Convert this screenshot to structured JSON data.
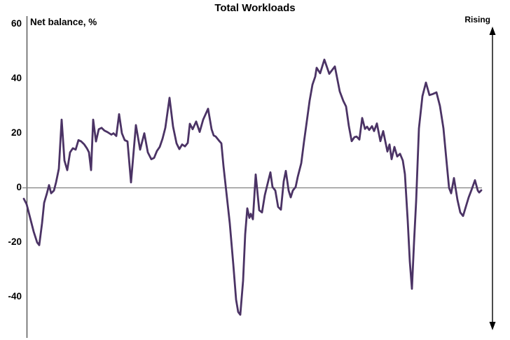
{
  "chart_data": {
    "type": "line",
    "title": "Total Workloads",
    "axis_label": "Net balance, %",
    "annotation_right": "Rising",
    "ylabel": "Net balance, %",
    "xlabel": "",
    "y_ticks": [
      60,
      40,
      20,
      0,
      -20,
      -40
    ],
    "ylim": [
      -52,
      62
    ],
    "grid": "zero-line-only",
    "legend_position": "none",
    "line_color": "#4b3365",
    "zero_line_color": "#808080",
    "axis_color": "#3a3a3a",
    "arrow_color": "#000000",
    "series_name": "Total Workloads net balance",
    "points": [
      [
        34,
        -4
      ],
      [
        38,
        -6
      ],
      [
        43,
        -11
      ],
      [
        48,
        -16
      ],
      [
        53,
        -20
      ],
      [
        56,
        -21
      ],
      [
        60,
        -13
      ],
      [
        63,
        -5.5
      ],
      [
        67,
        -2
      ],
      [
        70,
        1
      ],
      [
        73,
        -2
      ],
      [
        77,
        -1
      ],
      [
        80,
        2
      ],
      [
        84,
        7
      ],
      [
        88,
        25
      ],
      [
        92,
        10
      ],
      [
        96,
        6.5
      ],
      [
        100,
        13
      ],
      [
        104,
        14.5
      ],
      [
        108,
        14
      ],
      [
        112,
        17.5
      ],
      [
        116,
        17
      ],
      [
        120,
        16
      ],
      [
        124,
        14.5
      ],
      [
        127,
        13
      ],
      [
        130,
        6.5
      ],
      [
        133,
        25
      ],
      [
        137,
        17
      ],
      [
        141,
        21.5
      ],
      [
        145,
        22
      ],
      [
        149,
        21
      ],
      [
        153,
        20.5
      ],
      [
        156,
        20
      ],
      [
        159,
        19.5
      ],
      [
        162,
        20
      ],
      [
        166,
        19
      ],
      [
        170,
        27
      ],
      [
        174,
        20
      ],
      [
        178,
        17.5
      ],
      [
        182,
        17
      ],
      [
        187,
        2
      ],
      [
        194,
        23
      ],
      [
        200,
        14
      ],
      [
        206,
        20
      ],
      [
        211,
        13
      ],
      [
        216,
        10.5
      ],
      [
        220,
        11
      ],
      [
        224,
        13.5
      ],
      [
        228,
        15
      ],
      [
        232,
        18
      ],
      [
        236,
        22
      ],
      [
        242,
        33
      ],
      [
        247,
        22.5
      ],
      [
        252,
        16.3
      ],
      [
        256,
        14.2
      ],
      [
        260,
        15.9
      ],
      [
        264,
        15.2
      ],
      [
        268,
        16.5
      ],
      [
        271,
        23.5
      ],
      [
        275,
        21.5
      ],
      [
        280,
        24.3
      ],
      [
        285,
        20.5
      ],
      [
        290,
        25
      ],
      [
        297,
        29
      ],
      [
        302,
        21.5
      ],
      [
        305,
        19.2
      ],
      [
        308,
        18.8
      ],
      [
        312,
        17.5
      ],
      [
        316,
        16.3
      ],
      [
        319,
        8
      ],
      [
        325,
        -6
      ],
      [
        328,
        -13
      ],
      [
        333,
        -28
      ],
      [
        337,
        -41
      ],
      [
        340,
        -45.5
      ],
      [
        343,
        -46.5
      ],
      [
        347,
        -34
      ],
      [
        350,
        -17
      ],
      [
        353,
        -7.5
      ],
      [
        356,
        -11
      ],
      [
        358,
        -9.5
      ],
      [
        361,
        -11.5
      ],
      [
        365,
        4.9
      ],
      [
        370,
        -8.2
      ],
      [
        374,
        -9
      ],
      [
        378,
        -2.7
      ],
      [
        382,
        1.5
      ],
      [
        386,
        5.7
      ],
      [
        389,
        0.3
      ],
      [
        393,
        -1
      ],
      [
        397,
        -7
      ],
      [
        401,
        -8
      ],
      [
        405,
        2.4
      ],
      [
        408,
        6.2
      ],
      [
        412,
        -1
      ],
      [
        415,
        -3.5
      ],
      [
        418,
        -1
      ],
      [
        422,
        0.3
      ],
      [
        425,
        4
      ],
      [
        430,
        9
      ],
      [
        434,
        17
      ],
      [
        437,
        22.6
      ],
      [
        442,
        32
      ],
      [
        446,
        37.8
      ],
      [
        450,
        40.8
      ],
      [
        452,
        44
      ],
      [
        457,
        42
      ],
      [
        463,
        47
      ],
      [
        470,
        41.8
      ],
      [
        478,
        44.5
      ],
      [
        485,
        35.3
      ],
      [
        490,
        31.9
      ],
      [
        494,
        29.8
      ],
      [
        498,
        22.6
      ],
      [
        502,
        17.1
      ],
      [
        506,
        18.6
      ],
      [
        509,
        18.8
      ],
      [
        513,
        17.7
      ],
      [
        517,
        25.6
      ],
      [
        521,
        21.6
      ],
      [
        524,
        22.4
      ],
      [
        527,
        21.2
      ],
      [
        531,
        22.6
      ],
      [
        534,
        20.8
      ],
      [
        538,
        23.6
      ],
      [
        543,
        17.1
      ],
      [
        547,
        20.8
      ],
      [
        553,
        13.3
      ],
      [
        556,
        15.9
      ],
      [
        559,
        10.5
      ],
      [
        563,
        15
      ],
      [
        567,
        11.5
      ],
      [
        571,
        12.5
      ],
      [
        575,
        10
      ],
      [
        578,
        5
      ],
      [
        582,
        -12
      ],
      [
        585,
        -27
      ],
      [
        588,
        -37
      ],
      [
        591,
        -20
      ],
      [
        594,
        -5
      ],
      [
        598,
        21.8
      ],
      [
        603,
        33.6
      ],
      [
        608,
        38.6
      ],
      [
        613,
        34
      ],
      [
        618,
        34.4
      ],
      [
        623,
        35
      ],
      [
        628,
        30
      ],
      [
        633,
        21.8
      ],
      [
        637,
        10.8
      ],
      [
        641,
        0
      ],
      [
        644,
        -2
      ],
      [
        648,
        3.6
      ],
      [
        653,
        -4.4
      ],
      [
        657,
        -9
      ],
      [
        661,
        -10.3
      ],
      [
        665,
        -6.9
      ],
      [
        669,
        -3.5
      ],
      [
        673,
        -0.8
      ],
      [
        678,
        2.8
      ],
      [
        682,
        -1
      ],
      [
        684,
        -1.7
      ],
      [
        687,
        -0.9
      ]
    ]
  }
}
